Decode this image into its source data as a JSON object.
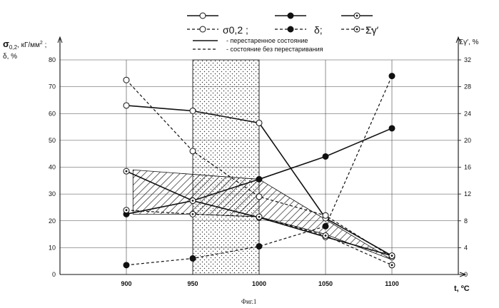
{
  "legend": {
    "symbols": [
      {
        "label": "σ0,2 ;",
        "marker": "open",
        "solid_color": "#111111",
        "dashed_color": "#111111"
      },
      {
        "label": "δ;",
        "marker": "filled",
        "solid_color": "#111111",
        "dashed_color": "#111111"
      },
      {
        "label": "Σγ′",
        "marker": "dotted",
        "solid_color": "#111111",
        "dashed_color": "#111111"
      }
    ],
    "line_styles": [
      {
        "style": "solid",
        "label": "- перестаренное состояние"
      },
      {
        "style": "dashed",
        "label": "- состояние без перестаривания"
      }
    ]
  },
  "caption": "Фиг.1",
  "chart_data": {
    "type": "line",
    "x_title": "t, ºC",
    "x_tick_labels": [
      "900",
      "950",
      "1000",
      "1050",
      "1100"
    ],
    "xlim": [
      850,
      1150
    ],
    "y_title": "σ0,2, кГ/мм² ; δ, %",
    "ylim": [
      0,
      80
    ],
    "y_ticks": [
      0,
      10,
      20,
      30,
      40,
      50,
      60,
      70,
      80
    ],
    "y2_title": "Σγ′, %",
    "y2lim": [
      0,
      32
    ],
    "y2_ticks": [
      0,
      4,
      8,
      12,
      16,
      20,
      24,
      28,
      32
    ],
    "grid": true,
    "shaded_band": {
      "x_from": 950,
      "x_to": 1000,
      "pattern": "dots"
    },
    "hatched_region": {
      "pattern": "diagonal",
      "upper": [
        [
          905,
          39
        ],
        [
          1000,
          35.5
        ],
        [
          1050,
          20.5
        ],
        [
          1100,
          5.5
        ]
      ],
      "lower": [
        [
          905,
          22.5
        ],
        [
          950,
          22.5
        ],
        [
          1000,
          21.5
        ],
        [
          1050,
          15
        ],
        [
          1100,
          5.5
        ]
      ]
    },
    "series": [
      {
        "axis": "left",
        "marker": "open",
        "style": "solid",
        "x": [
          900,
          950,
          1000,
          1050,
          1100
        ],
        "y": [
          63,
          61,
          56.5,
          21,
          7
        ]
      },
      {
        "axis": "left",
        "marker": "open",
        "style": "dashed",
        "x": [
          900,
          950,
          1000,
          1050,
          1100
        ],
        "y": [
          72.5,
          46,
          29,
          22,
          6.5
        ]
      },
      {
        "axis": "left",
        "marker": "filled",
        "style": "solid",
        "x": [
          900,
          950,
          1000,
          1050,
          1100
        ],
        "y": [
          22.5,
          27.5,
          35.5,
          44,
          54.5
        ]
      },
      {
        "axis": "left",
        "marker": "filled",
        "style": "dashed",
        "x": [
          900,
          950,
          1000,
          1050,
          1100
        ],
        "y": [
          3.5,
          6,
          10.5,
          18,
          74
        ]
      },
      {
        "axis": "right",
        "marker": "dotted",
        "style": "solid",
        "x": [
          900,
          950,
          1000,
          1050,
          1100
        ],
        "y": [
          15.4,
          11,
          8.5,
          5.6,
          2.8
        ]
      },
      {
        "axis": "right",
        "marker": "dotted",
        "style": "dashed",
        "x": [
          900,
          950,
          1000,
          1050,
          1100
        ],
        "y": [
          9.6,
          9,
          8.6,
          5.8,
          1.4
        ]
      }
    ]
  }
}
